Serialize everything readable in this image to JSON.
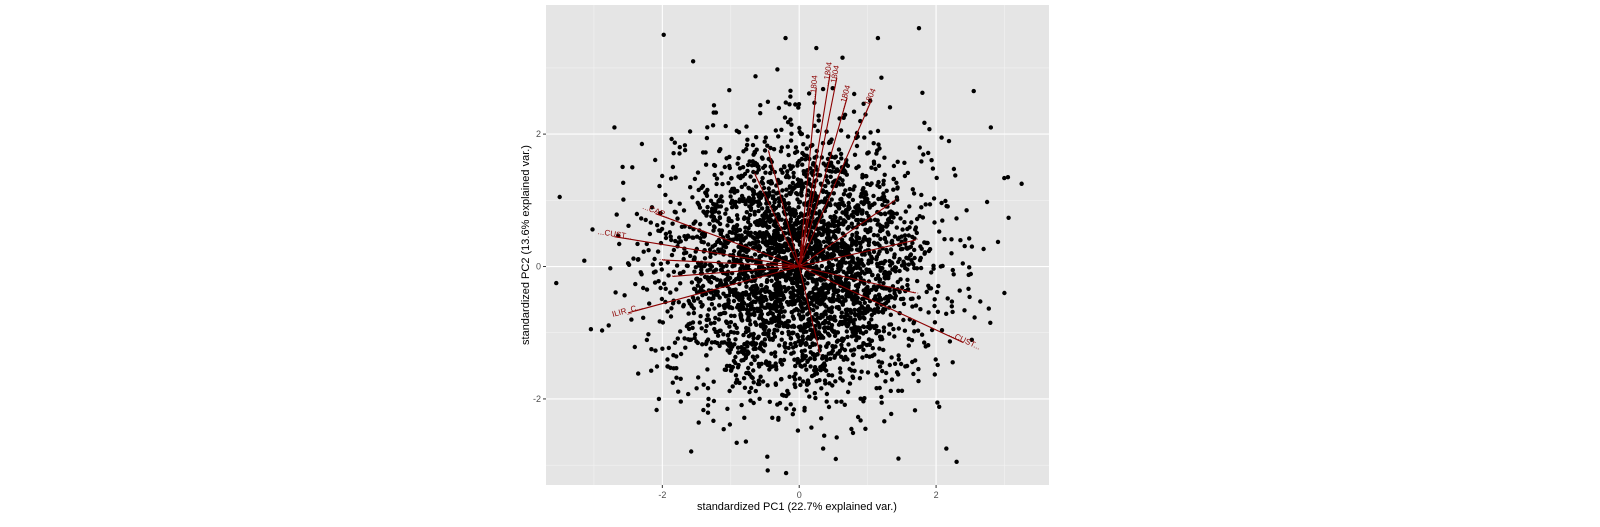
{
  "chart_data": {
    "type": "scatter",
    "title": "",
    "xlabel": "standardized PC1 (22.7% explained var.)",
    "ylabel": "standardized PC2 (13.6% explained var.)",
    "xlim": [
      -3.7,
      3.65
    ],
    "ylim": [
      -3.3,
      3.95
    ],
    "x_ticks": [
      -2,
      0,
      2
    ],
    "y_ticks": [
      -2,
      0,
      2
    ],
    "x_tick_labels": [
      "-2",
      "0",
      "2"
    ],
    "y_tick_labels": [
      "-2",
      "0",
      "2"
    ],
    "grid": true,
    "background": "#e5e5e5",
    "point_color": "#000000",
    "arrow_color": "#8b0000",
    "point_count": 3500,
    "points_sample": [
      {
        "x": -1.98,
        "y": 3.5
      },
      {
        "x": -1.55,
        "y": 3.1
      },
      {
        "x": -0.2,
        "y": 3.45
      },
      {
        "x": 0.25,
        "y": 3.3
      },
      {
        "x": 1.15,
        "y": 3.45
      },
      {
        "x": 1.75,
        "y": 3.6
      },
      {
        "x": 2.55,
        "y": 2.65
      },
      {
        "x": 2.8,
        "y": 2.1
      },
      {
        "x": 3.05,
        "y": 1.35
      },
      {
        "x": 3.25,
        "y": 1.25
      },
      {
        "x": -3.55,
        "y": -0.25
      },
      {
        "x": -3.5,
        "y": 1.05
      },
      {
        "x": -2.7,
        "y": 2.1
      },
      {
        "x": -2.05,
        "y": -2.0
      },
      {
        "x": 0.35,
        "y": -2.75
      },
      {
        "x": 1.45,
        "y": -2.9
      },
      {
        "x": 2.15,
        "y": -2.75
      },
      {
        "x": 2.3,
        "y": -2.95
      }
    ],
    "loadings": [
      {
        "label": "...1804",
        "x": 0.25,
        "y": 2.7
      },
      {
        "label": "...1804",
        "x": 0.45,
        "y": 2.9
      },
      {
        "label": "...1804",
        "x": 0.55,
        "y": 2.85
      },
      {
        "label": "...1804",
        "x": 0.7,
        "y": 2.55
      },
      {
        "label": "...1804",
        "x": 1.05,
        "y": 2.5
      },
      {
        "label": "...",
        "x": -0.45,
        "y": 1.75
      },
      {
        "label": "...",
        "x": -0.65,
        "y": 1.4
      },
      {
        "label": "...",
        "x": 1.4,
        "y": 1.0
      },
      {
        "label": "...CAP...",
        "x": -2.1,
        "y": 0.8
      },
      {
        "label": "...CUST...",
        "x": -2.7,
        "y": 0.45
      },
      {
        "label": "...",
        "x": -2.0,
        "y": 0.1
      },
      {
        "label": "...",
        "x": -1.85,
        "y": -0.15
      },
      {
        "label": "ILIR_C...",
        "x": -2.5,
        "y": -0.7
      },
      {
        "label": "...",
        "x": 1.7,
        "y": 0.4
      },
      {
        "label": "...",
        "x": 1.7,
        "y": -0.4
      },
      {
        "label": "...CUST...",
        "x": 2.4,
        "y": -1.15
      },
      {
        "label": "...",
        "x": 0.3,
        "y": -1.3
      }
    ]
  }
}
